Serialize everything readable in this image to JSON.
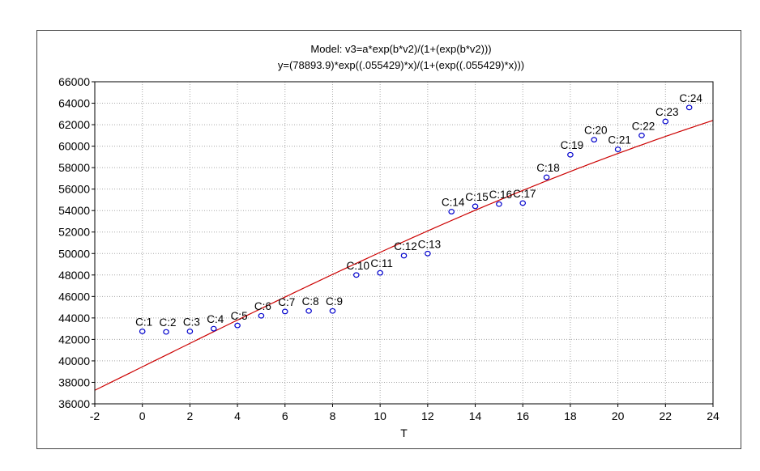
{
  "chart_data": {
    "type": "scatter",
    "title_line1": "Model: v3=a*exp(b*v2)/(1+(exp(b*v2)))",
    "title_line2": "y=(78893.9)*exp((.055429)*x)/(1+(exp((.055429)*x)))",
    "xlabel": "T",
    "ylabel": "",
    "xlim": [
      -2,
      24
    ],
    "ylim": [
      36000,
      66000
    ],
    "x_ticks": [
      -2,
      0,
      2,
      4,
      6,
      8,
      10,
      12,
      14,
      16,
      18,
      20,
      22,
      24
    ],
    "y_ticks": [
      36000,
      38000,
      40000,
      42000,
      44000,
      46000,
      48000,
      50000,
      52000,
      54000,
      56000,
      58000,
      60000,
      62000,
      64000,
      66000
    ],
    "grid": true,
    "point_color": "#0000cc",
    "fit_color": "#cc0000",
    "fit": {
      "a": 78893.9,
      "b": 0.055429
    },
    "points": [
      {
        "label": "C:1",
        "x": 0,
        "y": 42750
      },
      {
        "label": "C:2",
        "x": 1,
        "y": 42700
      },
      {
        "label": "C:3",
        "x": 2,
        "y": 42750
      },
      {
        "label": "C:4",
        "x": 3,
        "y": 43000
      },
      {
        "label": "C:5",
        "x": 4,
        "y": 43300
      },
      {
        "label": "C:6",
        "x": 5,
        "y": 44200
      },
      {
        "label": "C:7",
        "x": 6,
        "y": 44600
      },
      {
        "label": "C:8",
        "x": 7,
        "y": 44650
      },
      {
        "label": "C:9",
        "x": 8,
        "y": 44650
      },
      {
        "label": "C:10",
        "x": 9,
        "y": 48000
      },
      {
        "label": "C:11",
        "x": 10,
        "y": 48200
      },
      {
        "label": "C:12",
        "x": 11,
        "y": 49800
      },
      {
        "label": "C:13",
        "x": 12,
        "y": 50000
      },
      {
        "label": "C:14",
        "x": 13,
        "y": 53900
      },
      {
        "label": "C:15",
        "x": 14,
        "y": 54400
      },
      {
        "label": "C:16",
        "x": 15,
        "y": 54600
      },
      {
        "label": "C:17",
        "x": 16,
        "y": 54700
      },
      {
        "label": "C:18",
        "x": 17,
        "y": 57100
      },
      {
        "label": "C:19",
        "x": 18,
        "y": 59200
      },
      {
        "label": "C:20",
        "x": 19,
        "y": 60600
      },
      {
        "label": "C:21",
        "x": 20,
        "y": 59700
      },
      {
        "label": "C:22",
        "x": 21,
        "y": 61000
      },
      {
        "label": "C:23",
        "x": 22,
        "y": 62300
      },
      {
        "label": "C:24",
        "x": 23,
        "y": 63600
      }
    ]
  }
}
